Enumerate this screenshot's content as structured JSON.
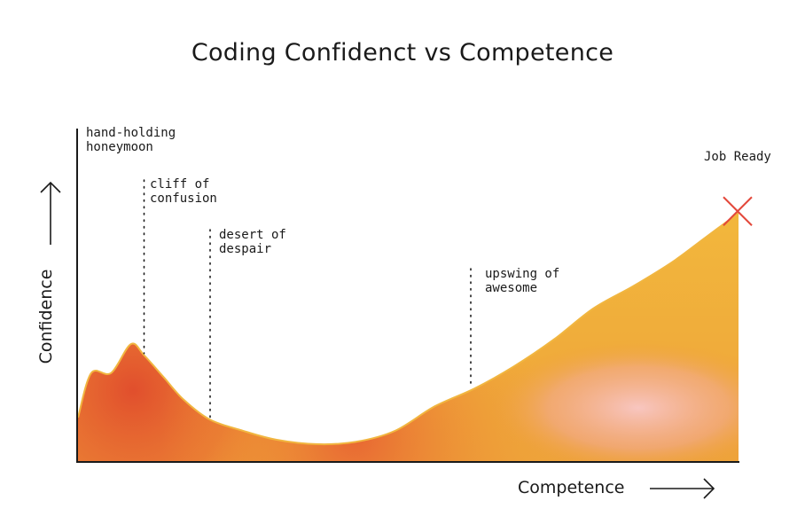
{
  "chart_data": {
    "type": "area",
    "title": "Coding Confidenct vs Competence",
    "xlabel": "Competence",
    "ylabel": "Confidence",
    "x": [
      0,
      2,
      5,
      8,
      10,
      13,
      16,
      20,
      25,
      30,
      36,
      42,
      48,
      54,
      60,
      66,
      72,
      78,
      84,
      90,
      95,
      100
    ],
    "y": [
      20,
      40,
      40,
      53,
      48,
      38,
      28,
      19,
      14,
      10,
      8,
      9,
      14,
      25,
      33,
      43,
      55,
      69,
      79,
      90,
      101,
      112
    ],
    "xlim": [
      0,
      100
    ],
    "ylim": [
      0,
      150
    ],
    "grid": false,
    "colors": {
      "edge": "#f2b73c",
      "body": "#ef9a32",
      "hot": "#e04a2c",
      "pink": "#f5b6b0"
    },
    "annotations": [
      {
        "text": "hand-holding\nhoneymoon",
        "x": 10
      },
      {
        "text": "cliff of\nconfusion",
        "x": 10
      },
      {
        "text": "desert of\ndespair",
        "x": 20
      },
      {
        "text": "upswing of\nawesome",
        "x": 60
      },
      {
        "text": "Job Ready",
        "x": 100
      }
    ],
    "marker": {
      "symbol": "cross",
      "x": 100,
      "color": "#e3483b"
    }
  }
}
